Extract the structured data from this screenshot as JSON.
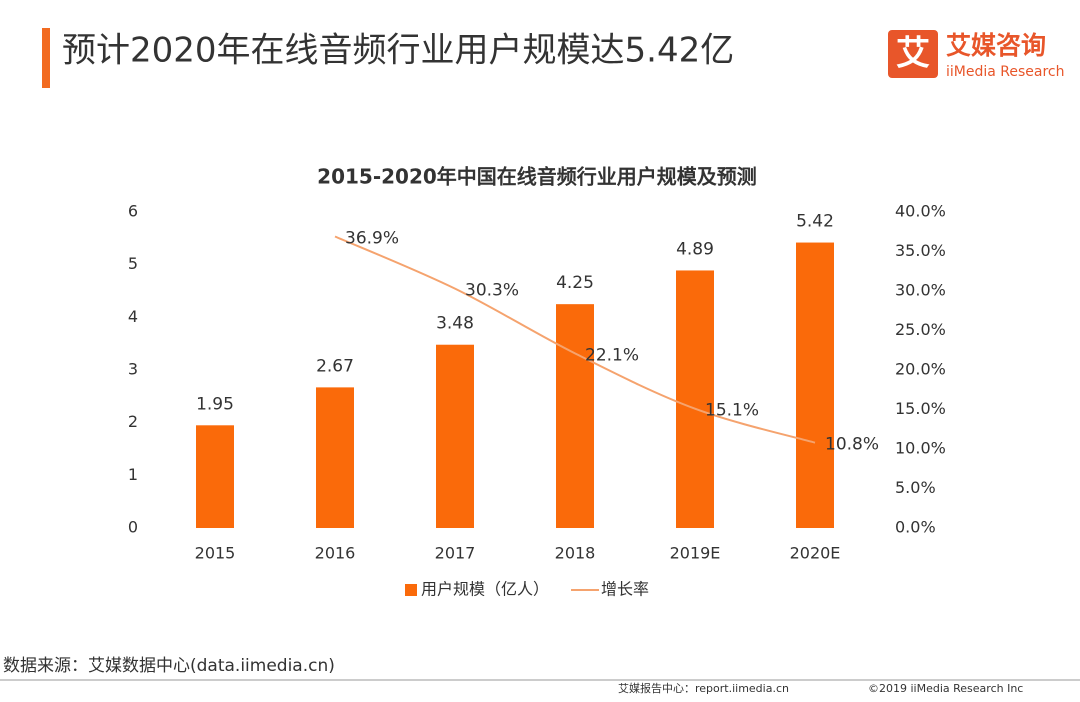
{
  "header": {
    "title": "预计2020年在线音频行业用户规模达5.42亿",
    "logo_mark": "艾",
    "logo_cn": "艾媒咨询",
    "logo_en": "iiMedia Research"
  },
  "chart_data": {
    "type": "combo",
    "title": "2015-2020年中国在线音频行业用户规模及预测",
    "categories": [
      "2015",
      "2016",
      "2017",
      "2018",
      "2019E",
      "2020E"
    ],
    "series": [
      {
        "name": "用户规模（亿人）",
        "type": "bar",
        "color": "#fa6a0a",
        "values": [
          1.95,
          2.67,
          3.48,
          4.25,
          4.89,
          5.42
        ]
      },
      {
        "name": "增长率",
        "type": "line",
        "axis": "y2",
        "color": "#f5a36e",
        "values": [
          null,
          36.9,
          30.3,
          22.1,
          15.1,
          10.8
        ],
        "value_labels": [
          null,
          "36.9%",
          "30.3%",
          "22.1%",
          "15.1%",
          "10.8%"
        ]
      }
    ],
    "ylim": [
      0,
      6
    ],
    "yticks": [
      0,
      1,
      2,
      3,
      4,
      5,
      6
    ],
    "y2lim": [
      0,
      40
    ],
    "y2ticks": [
      {
        "value": 0,
        "label": "0.0%"
      },
      {
        "value": 5,
        "label": "5.0%"
      },
      {
        "value": 10,
        "label": "10.0%"
      },
      {
        "value": 15,
        "label": "15.0%"
      },
      {
        "value": 20,
        "label": "20.0%"
      },
      {
        "value": 25,
        "label": "25.0%"
      },
      {
        "value": 30,
        "label": "30.0%"
      },
      {
        "value": 35,
        "label": "35.0%"
      },
      {
        "value": 40,
        "label": "40.0%"
      }
    ],
    "grid": false,
    "legend": "bottom"
  },
  "source": "数据来源：艾媒数据中心(data.iimedia.cn)",
  "footer": {
    "report": "艾媒报告中心：report.iimedia.cn",
    "copyright": "©2019  iiMedia Research  Inc"
  }
}
